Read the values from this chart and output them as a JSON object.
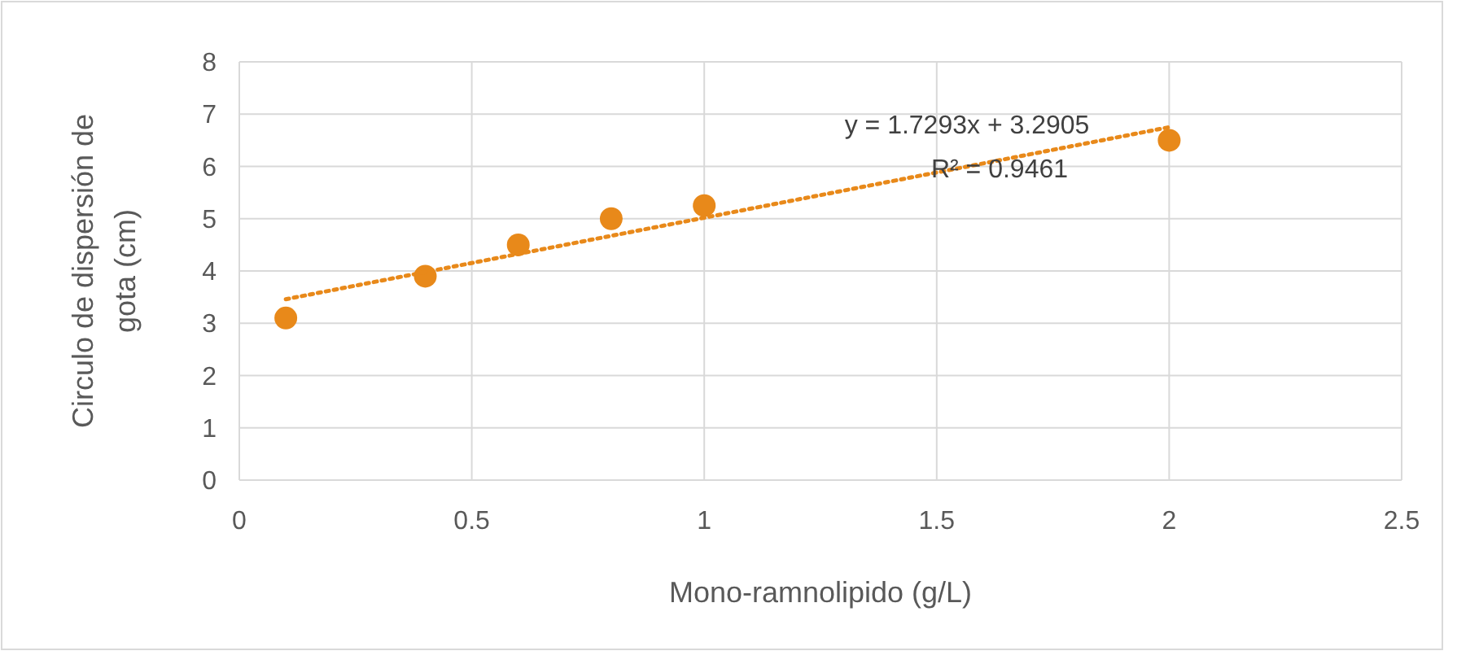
{
  "chart_data": {
    "type": "scatter",
    "xlabel": "Mono-ramnolipido (g/L)",
    "ylabel": "Circulo de dispersión de gota (cm)",
    "xlim": [
      0,
      2.5
    ],
    "xticks": [
      0,
      0.5,
      1,
      1.5,
      2,
      2.5
    ],
    "ylim": [
      0,
      8
    ],
    "yticks": [
      0,
      1,
      2,
      3,
      4,
      5,
      6,
      7,
      8
    ],
    "grid": true,
    "series": [
      {
        "marker": "circle",
        "color": "#e8891a",
        "x": [
          0.1,
          0.4,
          0.6,
          0.8,
          1.0,
          2.0
        ],
        "values": [
          3.1,
          3.9,
          4.5,
          5.0,
          5.25,
          6.5
        ]
      },
      {
        "type": "line",
        "color": "#e8891a",
        "line_style": "dotted",
        "x": [
          0.1,
          2.0
        ],
        "values": [
          3.46,
          6.75
        ]
      }
    ],
    "annotations": [
      "y = 1.7293x + 3.2905",
      "R² = 0.9461"
    ]
  }
}
